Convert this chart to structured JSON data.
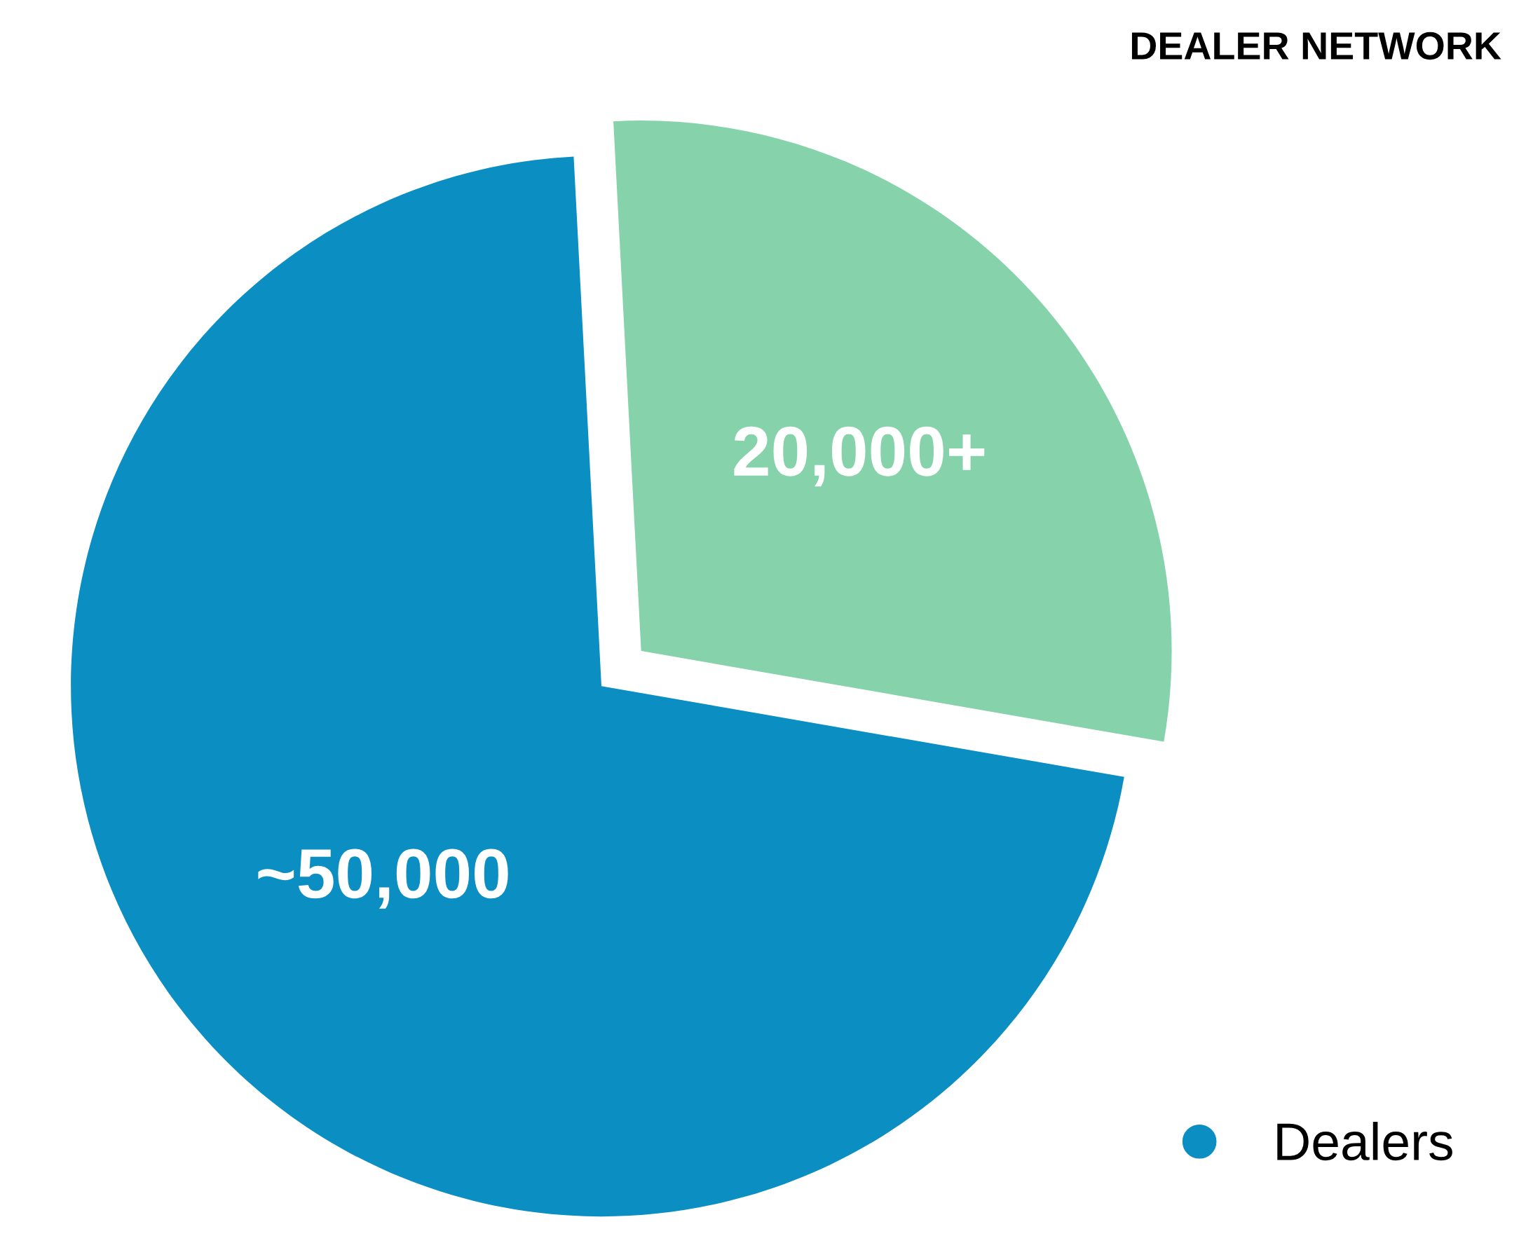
{
  "chart_data": {
    "type": "pie",
    "title": "DEALER NETWORK",
    "categories": [
      null,
      "Dealers"
    ],
    "values": [
      20000,
      50000
    ],
    "value_labels": [
      "20,000+",
      "~50,000"
    ],
    "colors": [
      "#86d3ab",
      "#0b8ec2"
    ],
    "legend": "bottom right"
  }
}
